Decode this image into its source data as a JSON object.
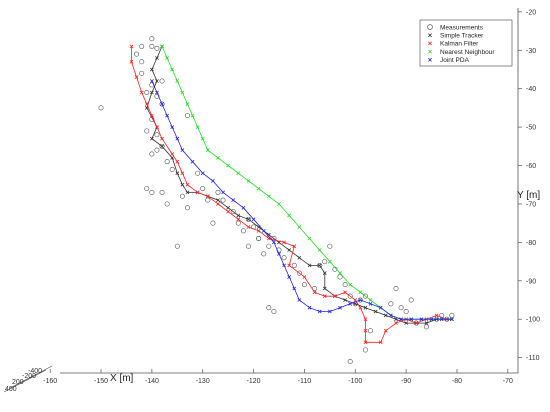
{
  "chart_data": {
    "type": "scatter",
    "title": "",
    "xlabel": "X [m]",
    "ylabel": "Y [m]",
    "xlim": [
      -162,
      -68
    ],
    "ylim": [
      -114,
      -19
    ],
    "x_ticks": [
      "-160",
      "-150",
      "-140",
      "-130",
      "-120",
      "-110",
      "-100",
      "-90",
      "-80",
      "-70"
    ],
    "x_tick_values": [
      -160,
      -150,
      -140,
      -130,
      -120,
      -110,
      -100,
      -90,
      -80,
      -70
    ],
    "y_ticks": [
      "-20",
      "-30",
      "-40",
      "-50",
      "-60",
      "-70",
      "-80",
      "-90",
      "-100",
      "-110"
    ],
    "y_tick_values": [
      -20,
      -30,
      -40,
      -50,
      -60,
      -70,
      -80,
      -90,
      -100,
      -110
    ],
    "z_ticks": [
      "-400",
      "-200",
      "200",
      "400"
    ],
    "legend_position": "top-right",
    "series": [
      {
        "name": "Measurements",
        "marker": "o",
        "color": "#555555",
        "points": [
          [
            -150,
            -45
          ],
          [
            -140,
            -27
          ],
          [
            -140,
            -29
          ],
          [
            -139,
            -29.5
          ],
          [
            -138,
            -38
          ],
          [
            -142,
            -29
          ],
          [
            -143,
            -31
          ],
          [
            -142,
            -33
          ],
          [
            -142,
            -36
          ],
          [
            -140,
            -39
          ],
          [
            -141,
            -41
          ],
          [
            -139,
            -42
          ],
          [
            -138,
            -44
          ],
          [
            -140,
            -48
          ],
          [
            -139,
            -52
          ],
          [
            -141,
            -51
          ],
          [
            -138,
            -55
          ],
          [
            -139,
            -56
          ],
          [
            -140,
            -57
          ],
          [
            -137,
            -59
          ],
          [
            -141,
            -66
          ],
          [
            -140,
            -67
          ],
          [
            -138,
            -67
          ],
          [
            -137,
            -70
          ],
          [
            -135,
            -81
          ],
          [
            -134,
            -68
          ],
          [
            -133,
            -71
          ],
          [
            -131,
            -62
          ],
          [
            -136,
            -61
          ],
          [
            -133,
            -47
          ],
          [
            -130,
            -66
          ],
          [
            -129,
            -69
          ],
          [
            -127,
            -67
          ],
          [
            -126,
            -69
          ],
          [
            -128,
            -75
          ],
          [
            -124,
            -72
          ],
          [
            -123,
            -75
          ],
          [
            -122,
            -77
          ],
          [
            -121,
            -74
          ],
          [
            -120,
            -76
          ],
          [
            -119,
            -79
          ],
          [
            -117,
            -81
          ],
          [
            -116,
            -79
          ],
          [
            -118,
            -83
          ],
          [
            -115,
            -82
          ],
          [
            -114,
            -84
          ],
          [
            -112,
            -86
          ],
          [
            -111,
            -88
          ],
          [
            -117,
            -97
          ],
          [
            -116,
            -98
          ],
          [
            -110,
            -91
          ],
          [
            -108,
            -92
          ],
          [
            -107,
            -86
          ],
          [
            -106,
            -85
          ],
          [
            -105,
            -81
          ],
          [
            -104,
            -87
          ],
          [
            -103,
            -89
          ],
          [
            -102,
            -91
          ],
          [
            -101,
            -94
          ],
          [
            -100,
            -96
          ],
          [
            -99,
            -95
          ],
          [
            -98,
            -94
          ],
          [
            -97,
            -103
          ],
          [
            -98,
            -108
          ],
          [
            -101,
            -111
          ],
          [
            -93,
            -96
          ],
          [
            -92,
            -92
          ],
          [
            -91,
            -97
          ],
          [
            -90,
            -98
          ],
          [
            -89,
            -95
          ],
          [
            -88,
            -101
          ],
          [
            -86,
            -102
          ],
          [
            -84,
            -100
          ],
          [
            -83,
            -99
          ],
          [
            -82,
            -100
          ],
          [
            -81,
            -99
          ],
          [
            -119,
            -79
          ],
          [
            -121,
            -81
          ]
        ]
      },
      {
        "name": "Simple Tracker",
        "marker": "x",
        "color": "#333333",
        "points": [
          [
            -138,
            -29
          ],
          [
            -139,
            -32
          ],
          [
            -140,
            -35
          ],
          [
            -139,
            -38
          ],
          [
            -140,
            -41
          ],
          [
            -141,
            -45
          ],
          [
            -139,
            -50
          ],
          [
            -140,
            -53
          ],
          [
            -138,
            -55
          ],
          [
            -136,
            -58
          ],
          [
            -135,
            -62
          ],
          [
            -134,
            -65
          ],
          [
            -133,
            -67
          ],
          [
            -131,
            -67
          ],
          [
            -129,
            -68
          ],
          [
            -127,
            -69
          ],
          [
            -125,
            -71
          ],
          [
            -123,
            -73
          ],
          [
            -121,
            -74
          ],
          [
            -119,
            -76
          ],
          [
            -117,
            -78
          ],
          [
            -115,
            -80
          ],
          [
            -113,
            -82
          ],
          [
            -111,
            -84
          ],
          [
            -109,
            -86
          ],
          [
            -107,
            -86
          ],
          [
            -106,
            -88
          ],
          [
            -106,
            -92
          ],
          [
            -104,
            -94
          ],
          [
            -102,
            -95
          ],
          [
            -100,
            -96
          ],
          [
            -98,
            -97
          ],
          [
            -96,
            -98
          ],
          [
            -94,
            -99
          ],
          [
            -92,
            -100
          ],
          [
            -90,
            -101
          ],
          [
            -88,
            -101
          ],
          [
            -86,
            -101
          ],
          [
            -84,
            -100
          ],
          [
            -82,
            -100
          ],
          [
            -81,
            -100
          ]
        ]
      },
      {
        "name": "Kalman Filter",
        "marker": "x",
        "color": "#ff2020",
        "points": [
          [
            -144,
            -29
          ],
          [
            -144,
            -33
          ],
          [
            -143,
            -37
          ],
          [
            -142,
            -41
          ],
          [
            -141,
            -44
          ],
          [
            -140,
            -47
          ],
          [
            -139,
            -50
          ],
          [
            -138,
            -53
          ],
          [
            -136,
            -57
          ],
          [
            -135,
            -59
          ],
          [
            -134,
            -62
          ],
          [
            -133,
            -65
          ],
          [
            -131,
            -67
          ],
          [
            -129,
            -68
          ],
          [
            -127,
            -70
          ],
          [
            -125,
            -72
          ],
          [
            -123,
            -74
          ],
          [
            -121,
            -76
          ],
          [
            -119,
            -77
          ],
          [
            -117,
            -79
          ],
          [
            -114,
            -80
          ],
          [
            -112,
            -81
          ],
          [
            -113,
            -86
          ],
          [
            -110,
            -89
          ],
          [
            -108,
            -93
          ],
          [
            -106,
            -94
          ],
          [
            -104,
            -94
          ],
          [
            -102,
            -93
          ],
          [
            -100,
            -95
          ],
          [
            -99,
            -97
          ],
          [
            -98,
            -100
          ],
          [
            -98,
            -103
          ],
          [
            -98,
            -106
          ],
          [
            -95,
            -106
          ],
          [
            -94,
            -103
          ],
          [
            -92,
            -101
          ],
          [
            -90,
            -100
          ],
          [
            -88,
            -101
          ],
          [
            -86,
            -100
          ],
          [
            -84,
            -99
          ],
          [
            -82,
            -100
          ]
        ]
      },
      {
        "name": "Nearest Neighbour",
        "marker": "x",
        "color": "#22dd22",
        "points": [
          [
            -138,
            -29
          ],
          [
            -137,
            -32
          ],
          [
            -136,
            -35
          ],
          [
            -135,
            -38
          ],
          [
            -134,
            -41
          ],
          [
            -133,
            -44
          ],
          [
            -132,
            -47
          ],
          [
            -131,
            -50
          ],
          [
            -130,
            -53
          ],
          [
            -129,
            -56
          ],
          [
            -127,
            -58
          ],
          [
            -125,
            -60
          ],
          [
            -123,
            -62
          ],
          [
            -121,
            -64
          ],
          [
            -119,
            -66
          ],
          [
            -117,
            -68
          ],
          [
            -115,
            -70
          ],
          [
            -113,
            -73
          ],
          [
            -111,
            -76
          ],
          [
            -109,
            -79
          ],
          [
            -107,
            -82
          ],
          [
            -105,
            -85
          ],
          [
            -103,
            -88
          ],
          [
            -101,
            -91
          ],
          [
            -99,
            -93
          ],
          [
            -97,
            -95
          ],
          [
            -95,
            -97
          ],
          [
            -93,
            -99
          ],
          [
            -91,
            -100
          ],
          [
            -89,
            -100
          ],
          [
            -87,
            -100
          ],
          [
            -85,
            -100
          ],
          [
            -83,
            -100
          ],
          [
            -81,
            -100
          ]
        ]
      },
      {
        "name": "Joint PDA",
        "marker": "x",
        "color": "#2222ee",
        "points": [
          [
            -140,
            -38
          ],
          [
            -139,
            -41
          ],
          [
            -138,
            -44
          ],
          [
            -137,
            -47
          ],
          [
            -136,
            -50
          ],
          [
            -135,
            -53
          ],
          [
            -134,
            -56
          ],
          [
            -132,
            -59
          ],
          [
            -130,
            -62
          ],
          [
            -128,
            -64
          ],
          [
            -126,
            -67
          ],
          [
            -124,
            -69
          ],
          [
            -122,
            -71
          ],
          [
            -120,
            -74
          ],
          [
            -118,
            -77
          ],
          [
            -116,
            -80
          ],
          [
            -115,
            -83
          ],
          [
            -114,
            -86
          ],
          [
            -113,
            -89
          ],
          [
            -112,
            -92
          ],
          [
            -111,
            -95
          ],
          [
            -109,
            -97
          ],
          [
            -107,
            -98
          ],
          [
            -105,
            -98
          ],
          [
            -103,
            -97
          ],
          [
            -101,
            -96
          ],
          [
            -99,
            -95
          ],
          [
            -97,
            -96
          ],
          [
            -95,
            -97
          ],
          [
            -93,
            -99
          ],
          [
            -91,
            -100
          ],
          [
            -89,
            -100
          ],
          [
            -87,
            -100
          ],
          [
            -85,
            -100
          ],
          [
            -83,
            -100
          ],
          [
            -81,
            -100
          ]
        ]
      }
    ]
  }
}
